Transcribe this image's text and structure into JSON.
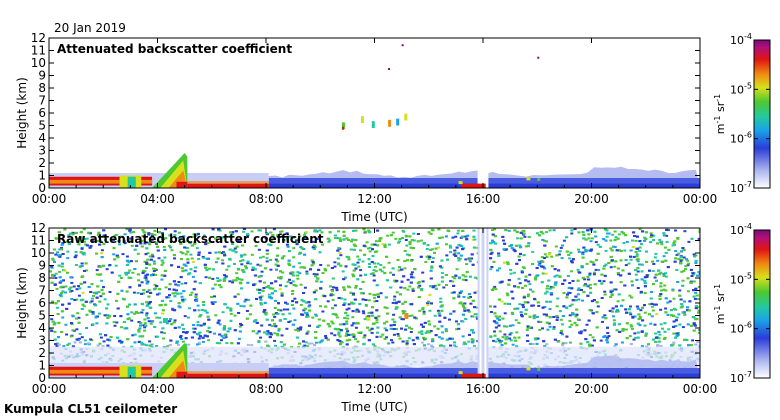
{
  "header": {
    "date": "20 Jan 2019",
    "instrument": "Kumpula CL51 ceilometer"
  },
  "chart_data": [
    {
      "type": "heatmap",
      "title": "Attenuated backscatter coefficient",
      "xlabel": "Time (UTC)",
      "ylabel": "Height (km)",
      "x_ticks": [
        "00:00",
        "04:00",
        "08:00",
        "12:00",
        "16:00",
        "20:00",
        "00:00"
      ],
      "x_range_hours": [
        0,
        24
      ],
      "y_ticks": [
        0,
        1,
        2,
        3,
        4,
        5,
        6,
        7,
        8,
        9,
        10,
        11,
        12
      ],
      "ylim": [
        0,
        12
      ],
      "colorbar": {
        "ticks": [
          "10^-4",
          "10^-5",
          "10^-6",
          "10^-7"
        ],
        "exponents": [
          -4,
          -5,
          -6,
          -7
        ],
        "label": "m-1 sr-1",
        "unit_base": "m",
        "unit_base2": "sr",
        "unit_exp": "-1"
      },
      "features": {
        "boundary_layer_top_km": 1.6,
        "rising_plume_hours": [
          3.8,
          5.1
        ],
        "rising_plume_top_km": 2.8,
        "elevated_layer_km": [
          4.8,
          5.8
        ],
        "elevated_layer_hours": [
          10.8,
          13.3
        ],
        "data_gap_hours": [
          15.8,
          16.2
        ]
      }
    },
    {
      "type": "heatmap",
      "title": "Raw attenuated backscatter coefficient",
      "xlabel": "Time (UTC)",
      "ylabel": "Height (km)",
      "x_ticks": [
        "00:00",
        "04:00",
        "08:00",
        "12:00",
        "16:00",
        "20:00",
        "00:00"
      ],
      "x_range_hours": [
        0,
        24
      ],
      "y_ticks": [
        0,
        1,
        2,
        3,
        4,
        5,
        6,
        7,
        8,
        9,
        10,
        11,
        12
      ],
      "ylim": [
        0,
        12
      ],
      "colorbar": {
        "ticks": [
          "10^-4",
          "10^-5",
          "10^-6",
          "10^-7"
        ],
        "exponents": [
          -4,
          -5,
          -6,
          -7
        ],
        "label": "m-1 sr-1",
        "unit_base": "m",
        "unit_base2": "sr",
        "unit_exp": "-1"
      },
      "features": {
        "noise_band_hours": [
          10,
          14
        ],
        "data_gap_hours": [
          15.8,
          16.2
        ]
      }
    }
  ]
}
